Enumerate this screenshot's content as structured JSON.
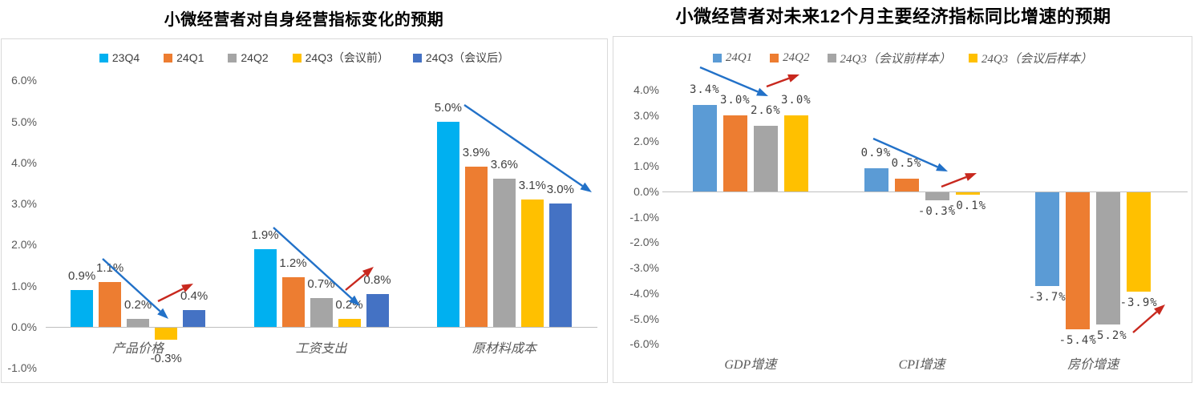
{
  "chart_data": [
    {
      "type": "bar",
      "title": "小微经营者对自身经营指标变化的预期",
      "categories": [
        "产品价格",
        "工资支出",
        "原材料成本"
      ],
      "series": [
        {
          "name": "23Q4",
          "color": "#00B0F0",
          "values": [
            0.9,
            1.9,
            5.0
          ]
        },
        {
          "name": "24Q1",
          "color": "#ED7D31",
          "values": [
            1.1,
            1.2,
            3.9
          ]
        },
        {
          "name": "24Q2",
          "color": "#A5A5A5",
          "values": [
            0.2,
            0.7,
            3.6
          ]
        },
        {
          "name": "24Q3（会议前）",
          "color": "#FFC000",
          "values": [
            -0.3,
            0.2,
            3.1
          ]
        },
        {
          "name": "24Q3（会议后）",
          "color": "#4472C4",
          "values": [
            0.4,
            0.8,
            3.0
          ]
        }
      ],
      "ylim": [
        -1.0,
        6.0
      ],
      "ytick_labels": [
        "6.0%",
        "5.0%",
        "4.0%",
        "3.0%",
        "2.0%",
        "1.0%",
        "0.0%",
        "-1.0%"
      ],
      "grid": false,
      "legend_position": "top",
      "annotations": [
        {
          "shape": "arrow",
          "trend": "down",
          "color": "#2271C8",
          "from": [
            128,
            323
          ],
          "to": [
            210,
            398
          ]
        },
        {
          "shape": "arrow",
          "trend": "up",
          "color": "#C8281E",
          "from": [
            197,
            376
          ],
          "to": [
            241,
            354
          ]
        },
        {
          "shape": "arrow",
          "trend": "down",
          "color": "#2271C8",
          "from": [
            341,
            284
          ],
          "to": [
            449,
            382
          ]
        },
        {
          "shape": "arrow",
          "trend": "up",
          "color": "#C8281E",
          "from": [
            431,
            362
          ],
          "to": [
            466,
            333
          ]
        },
        {
          "shape": "arrow",
          "trend": "down",
          "color": "#2271C8",
          "from": [
            579,
            131
          ],
          "to": [
            738,
            240
          ]
        }
      ]
    },
    {
      "type": "bar",
      "title": "小微经营者对未来12个月主要经济指标同比增速的预期",
      "categories": [
        "GDP增速",
        "CPI增速",
        "房价增速"
      ],
      "series": [
        {
          "name": "24Q1",
          "color": "#5B9BD5",
          "values": [
            3.4,
            0.9,
            -3.7
          ]
        },
        {
          "name": "24Q2",
          "color": "#ED7D31",
          "values": [
            3.0,
            0.5,
            -5.4
          ]
        },
        {
          "name": "24Q3（会议前样本）",
          "color": "#A5A5A5",
          "values": [
            2.6,
            -0.3,
            -5.2
          ]
        },
        {
          "name": "24Q3（会议后样本）",
          "color": "#FFC000",
          "values": [
            3.0,
            -0.1,
            -3.9
          ]
        }
      ],
      "ylim": [
        -6.0,
        4.0
      ],
      "ytick_labels": [
        "4.0%",
        "3.0%",
        "2.0%",
        "1.0%",
        "0.0%",
        "-1.0%",
        "-2.0%",
        "-3.0%",
        "-4.0%",
        "-5.0%",
        "-6.0%"
      ],
      "grid": false,
      "legend_position": "top",
      "annotations": [
        {
          "shape": "arrow",
          "trend": "down",
          "color": "#2271C8",
          "from": [
            873,
            84
          ],
          "to": [
            958,
            120
          ]
        },
        {
          "shape": "arrow",
          "trend": "up",
          "color": "#C8281E",
          "from": [
            956,
            108
          ],
          "to": [
            997,
            93
          ]
        },
        {
          "shape": "arrow",
          "trend": "down",
          "color": "#2271C8",
          "from": [
            1089,
            173
          ],
          "to": [
            1182,
            214
          ]
        },
        {
          "shape": "arrow",
          "trend": "up",
          "color": "#C8281E",
          "from": [
            1174,
            233
          ],
          "to": [
            1218,
            216
          ]
        },
        {
          "shape": "arrow",
          "trend": "up",
          "color": "#C8281E",
          "from": [
            1413,
            415
          ],
          "to": [
            1453,
            380
          ]
        }
      ]
    }
  ]
}
